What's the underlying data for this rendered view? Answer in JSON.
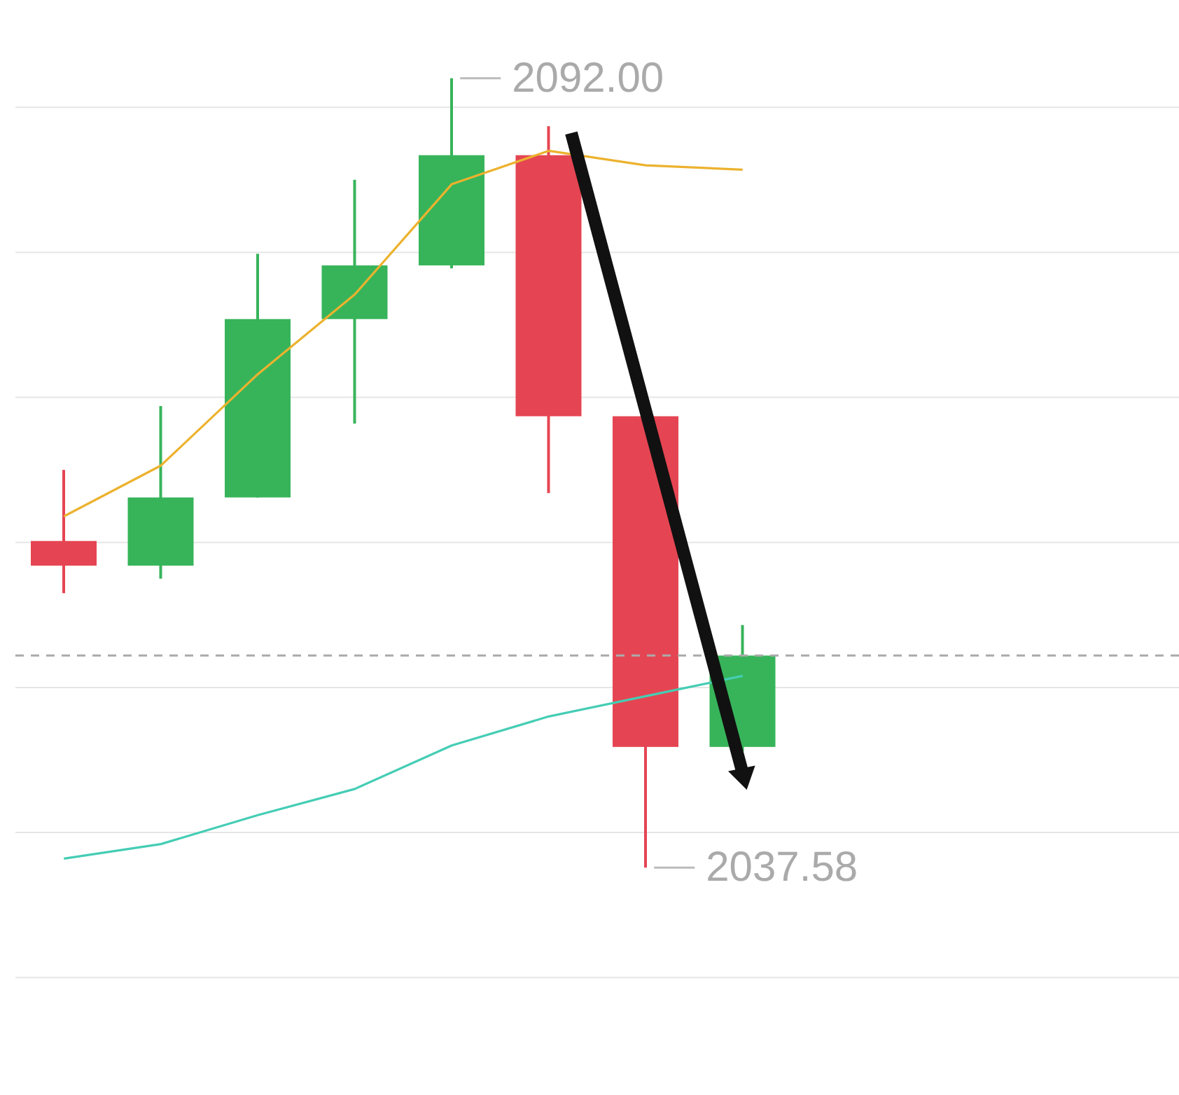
{
  "chart_data": {
    "type": "candlestick",
    "categories": [
      null,
      null,
      null,
      null,
      null,
      null,
      null,
      null,
      null,
      null,
      null,
      null
    ],
    "ohlc": [
      [
        2060.1,
        2065.0,
        2056.5,
        2058.4
      ],
      [
        2058.4,
        2069.4,
        2057.5,
        2063.1
      ],
      [
        2063.1,
        2079.9,
        2063.1,
        2075.4
      ],
      [
        2075.4,
        2085.0,
        2068.2,
        2079.1
      ],
      [
        2079.1,
        2092.0,
        2078.9,
        2086.7
      ],
      [
        2086.7,
        2088.7,
        2063.4,
        2068.7
      ],
      [
        2068.7,
        2068.7,
        2037.58,
        2045.9
      ],
      [
        2045.9,
        2054.3,
        2045.6,
        2052.2
      ],
      null,
      null,
      null,
      null
    ],
    "colors": [
      "#e54552",
      "#37b45a",
      "#37b45a",
      "#37b45a",
      "#37b45a",
      "#e54552",
      "#e54552",
      "#37b45a",
      null,
      null,
      null,
      null
    ],
    "series": [
      {
        "type": "line",
        "color": "#ecb22e",
        "values": [
          2061.8,
          2065.3,
          2071.6,
          2077.1,
          2084.7,
          2087.0,
          2086.0,
          2085.7,
          null,
          null,
          null,
          null
        ]
      },
      {
        "type": "line",
        "color": "#45cdb5",
        "values": [
          2038.2,
          2039.2,
          2041.2,
          2043.0,
          2046.0,
          2048.0,
          2049.4,
          2050.8,
          null,
          null,
          null,
          null
        ]
      }
    ],
    "ylim": [
      2021.9,
      2097.4
    ],
    "yticks": [
      {
        "value": 2030,
        "label": null
      },
      {
        "value": 2040,
        "label": null
      },
      {
        "value": 2050,
        "label": null
      },
      {
        "value": 2060,
        "label": null
      },
      {
        "value": 2070,
        "label": null
      },
      {
        "value": 2080,
        "label": null
      },
      {
        "value": 2090,
        "label": null
      }
    ],
    "grid": "y",
    "tick_labels": false,
    "ref_lines": [
      {
        "axis": "y",
        "value": 2052.2,
        "color": "#aaaaaa",
        "line_style": "dashed"
      }
    ],
    "annotations": [
      "2092.00",
      "2037.58"
    ]
  }
}
